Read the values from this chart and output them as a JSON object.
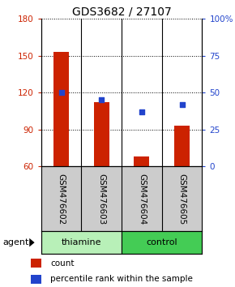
{
  "title": "GDS3682 / 27107",
  "samples": [
    "GSM476602",
    "GSM476603",
    "GSM476604",
    "GSM476605"
  ],
  "bar_values": [
    153,
    112,
    68,
    93
  ],
  "dot_values_pct": [
    50,
    45,
    37,
    42
  ],
  "ylim_left": [
    60,
    180
  ],
  "ylim_right": [
    0,
    100
  ],
  "yticks_left": [
    60,
    90,
    120,
    150,
    180
  ],
  "yticks_right": [
    0,
    25,
    50,
    75,
    100
  ],
  "bar_color": "#cc2200",
  "dot_color": "#2244cc",
  "bar_base": 60,
  "groups": [
    {
      "label": "thiamine",
      "samples": [
        0,
        1
      ],
      "color": "#b8f0b8"
    },
    {
      "label": "control",
      "samples": [
        2,
        3
      ],
      "color": "#44cc55"
    }
  ],
  "agent_label": "agent",
  "legend_count": "count",
  "legend_pct": "percentile rank within the sample",
  "left_tick_color": "#cc2200",
  "right_tick_color": "#2244cc",
  "sample_box_color": "#cccccc",
  "sample_box_edge": "#888888"
}
